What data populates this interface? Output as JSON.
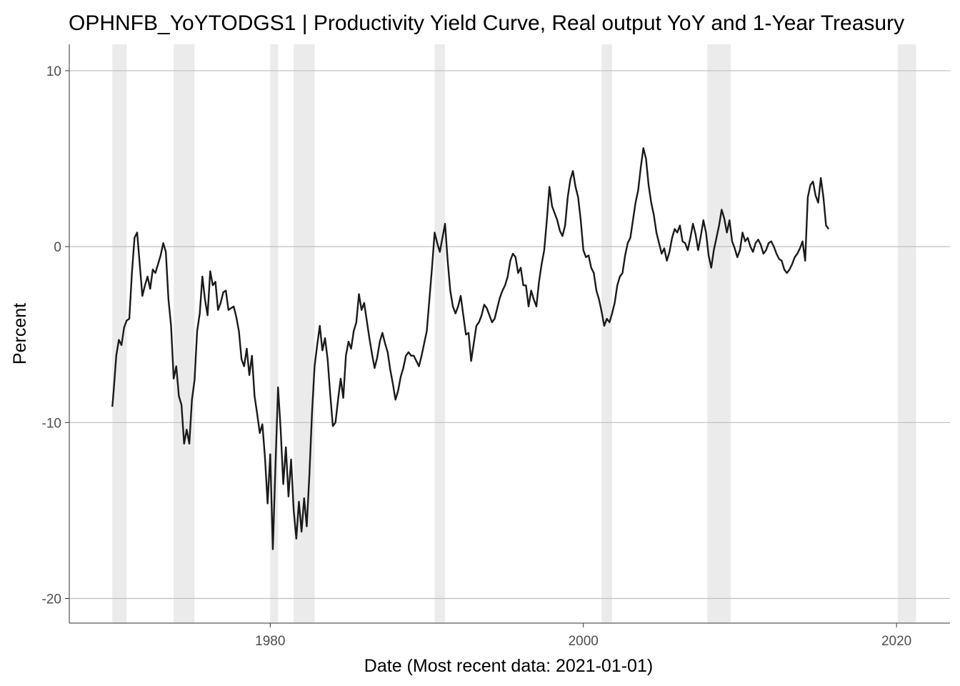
{
  "chart_data": {
    "type": "line",
    "title": "OPHNFB_YoYTODGS1 | Productivity Yield Curve, Real output YoY and 1-Year Treasury",
    "xlabel": "Date (Most recent data: 2021-01-01)",
    "ylabel": "Percent",
    "x_ticks": [
      "1980",
      "2000",
      "2020"
    ],
    "y_ticks": [
      10,
      0,
      -10,
      -20
    ],
    "xlim": [
      "1967-03-01",
      "2023-06-01"
    ],
    "ylim": [
      -21.4,
      11.5
    ],
    "grid": "major-y-and-x",
    "legend": "none",
    "colors": {
      "line": "#1a1a1a",
      "recession": "#ebebeb",
      "grid": "#bebebe",
      "axis": "#333333",
      "background": "#ffffff"
    },
    "recessions": [
      [
        "1969-12-01",
        "1970-11-01"
      ],
      [
        "1973-11-01",
        "1975-03-01"
      ],
      [
        "1980-01-01",
        "1980-07-01"
      ],
      [
        "1981-07-01",
        "1982-11-01"
      ],
      [
        "1990-07-01",
        "1991-03-01"
      ],
      [
        "2001-03-01",
        "2001-11-01"
      ],
      [
        "2007-12-01",
        "2009-06-01"
      ],
      [
        "2020-02-01",
        "2021-04-01"
      ]
    ],
    "series": [
      {
        "values": [
          [
            "1969-12-01",
            -9.1
          ],
          [
            "1970-01-01",
            -8.2
          ],
          [
            "1970-03-01",
            -6.2
          ],
          [
            "1970-05-01",
            -5.3
          ],
          [
            "1970-07-01",
            -5.6
          ],
          [
            "1970-09-01",
            -4.6
          ],
          [
            "1970-11-01",
            -4.2
          ],
          [
            "1971-01-01",
            -4.1
          ],
          [
            "1971-03-01",
            -1.5
          ],
          [
            "1971-05-01",
            0.5
          ],
          [
            "1971-07-01",
            0.8
          ],
          [
            "1971-09-01",
            -1.0
          ],
          [
            "1971-11-01",
            -2.8
          ],
          [
            "1972-01-01",
            -2.2
          ],
          [
            "1972-03-01",
            -1.7
          ],
          [
            "1972-05-01",
            -2.4
          ],
          [
            "1972-07-01",
            -1.3
          ],
          [
            "1972-09-01",
            -1.5
          ],
          [
            "1972-11-01",
            -1.0
          ],
          [
            "1973-01-01",
            -0.5
          ],
          [
            "1973-03-01",
            0.2
          ],
          [
            "1973-05-01",
            -0.3
          ],
          [
            "1973-07-01",
            -3.0
          ],
          [
            "1973-09-01",
            -4.5
          ],
          [
            "1973-11-01",
            -7.5
          ],
          [
            "1974-01-01",
            -6.8
          ],
          [
            "1974-03-01",
            -8.5
          ],
          [
            "1974-05-01",
            -9.0
          ],
          [
            "1974-07-01",
            -11.2
          ],
          [
            "1974-09-01",
            -10.4
          ],
          [
            "1974-11-01",
            -11.2
          ],
          [
            "1975-01-01",
            -8.7
          ],
          [
            "1975-03-01",
            -7.6
          ],
          [
            "1975-05-01",
            -4.8
          ],
          [
            "1975-07-01",
            -3.8
          ],
          [
            "1975-09-01",
            -1.7
          ],
          [
            "1975-11-01",
            -3.0
          ],
          [
            "1976-01-01",
            -3.9
          ],
          [
            "1976-03-01",
            -1.4
          ],
          [
            "1976-05-01",
            -2.2
          ],
          [
            "1976-07-01",
            -2.0
          ],
          [
            "1976-09-01",
            -3.6
          ],
          [
            "1976-11-01",
            -3.2
          ],
          [
            "1977-01-01",
            -2.6
          ],
          [
            "1977-03-01",
            -2.5
          ],
          [
            "1977-05-01",
            -3.6
          ],
          [
            "1977-07-01",
            -3.5
          ],
          [
            "1977-09-01",
            -3.4
          ],
          [
            "1977-11-01",
            -4.0
          ],
          [
            "1978-01-01",
            -4.8
          ],
          [
            "1978-03-01",
            -6.4
          ],
          [
            "1978-05-01",
            -6.8
          ],
          [
            "1978-07-01",
            -5.8
          ],
          [
            "1978-09-01",
            -7.3
          ],
          [
            "1978-11-01",
            -6.2
          ],
          [
            "1979-01-01",
            -8.5
          ],
          [
            "1979-03-01",
            -9.5
          ],
          [
            "1979-05-01",
            -10.6
          ],
          [
            "1979-07-01",
            -10.1
          ],
          [
            "1979-09-01",
            -12.0
          ],
          [
            "1979-11-01",
            -14.6
          ],
          [
            "1980-01-01",
            -11.8
          ],
          [
            "1980-03-01",
            -17.2
          ],
          [
            "1980-05-01",
            -12.5
          ],
          [
            "1980-07-01",
            -8.0
          ],
          [
            "1980-09-01",
            -10.4
          ],
          [
            "1980-11-01",
            -13.5
          ],
          [
            "1981-01-01",
            -11.4
          ],
          [
            "1981-03-01",
            -14.2
          ],
          [
            "1981-05-01",
            -12.1
          ],
          [
            "1981-07-01",
            -15.0
          ],
          [
            "1981-09-01",
            -16.6
          ],
          [
            "1981-11-01",
            -14.5
          ],
          [
            "1982-01-01",
            -16.2
          ],
          [
            "1982-03-01",
            -14.3
          ],
          [
            "1982-05-01",
            -15.9
          ],
          [
            "1982-07-01",
            -13.0
          ],
          [
            "1982-09-01",
            -9.5
          ],
          [
            "1982-11-01",
            -6.8
          ],
          [
            "1983-01-01",
            -5.6
          ],
          [
            "1983-03-01",
            -4.5
          ],
          [
            "1983-05-01",
            -5.9
          ],
          [
            "1983-07-01",
            -5.2
          ],
          [
            "1983-09-01",
            -6.4
          ],
          [
            "1983-11-01",
            -8.4
          ],
          [
            "1984-01-01",
            -10.2
          ],
          [
            "1984-03-01",
            -10.0
          ],
          [
            "1984-05-01",
            -8.7
          ],
          [
            "1984-07-01",
            -7.5
          ],
          [
            "1984-09-01",
            -8.6
          ],
          [
            "1984-11-01",
            -6.2
          ],
          [
            "1985-01-01",
            -5.4
          ],
          [
            "1985-03-01",
            -5.8
          ],
          [
            "1985-05-01",
            -4.8
          ],
          [
            "1985-07-01",
            -4.3
          ],
          [
            "1985-09-01",
            -2.7
          ],
          [
            "1985-11-01",
            -3.6
          ],
          [
            "1986-01-01",
            -3.2
          ],
          [
            "1986-03-01",
            -4.2
          ],
          [
            "1986-05-01",
            -5.2
          ],
          [
            "1986-07-01",
            -6.1
          ],
          [
            "1986-09-01",
            -6.9
          ],
          [
            "1986-11-01",
            -6.3
          ],
          [
            "1987-01-01",
            -5.4
          ],
          [
            "1987-03-01",
            -4.9
          ],
          [
            "1987-05-01",
            -5.5
          ],
          [
            "1987-07-01",
            -6.0
          ],
          [
            "1987-09-01",
            -7.0
          ],
          [
            "1987-11-01",
            -7.8
          ],
          [
            "1988-01-01",
            -8.7
          ],
          [
            "1988-03-01",
            -8.2
          ],
          [
            "1988-05-01",
            -7.4
          ],
          [
            "1988-07-01",
            -6.9
          ],
          [
            "1988-09-01",
            -6.2
          ],
          [
            "1988-11-01",
            -6.0
          ],
          [
            "1989-01-01",
            -6.2
          ],
          [
            "1989-03-01",
            -6.2
          ],
          [
            "1989-05-01",
            -6.5
          ],
          [
            "1989-07-01",
            -6.8
          ],
          [
            "1989-09-01",
            -6.2
          ],
          [
            "1989-11-01",
            -5.5
          ],
          [
            "1990-01-01",
            -4.8
          ],
          [
            "1990-03-01",
            -3.0
          ],
          [
            "1990-05-01",
            -1.2
          ],
          [
            "1990-07-01",
            0.8
          ],
          [
            "1990-09-01",
            0.2
          ],
          [
            "1990-11-01",
            -0.3
          ],
          [
            "1991-01-01",
            0.5
          ],
          [
            "1991-03-01",
            1.3
          ],
          [
            "1991-05-01",
            -0.8
          ],
          [
            "1991-07-01",
            -2.5
          ],
          [
            "1991-09-01",
            -3.4
          ],
          [
            "1991-11-01",
            -3.8
          ],
          [
            "1992-01-01",
            -3.4
          ],
          [
            "1992-03-01",
            -2.8
          ],
          [
            "1992-05-01",
            -3.9
          ],
          [
            "1992-07-01",
            -5.0
          ],
          [
            "1992-09-01",
            -4.9
          ],
          [
            "1992-11-01",
            -6.5
          ],
          [
            "1993-01-01",
            -5.5
          ],
          [
            "1993-03-01",
            -4.5
          ],
          [
            "1993-05-01",
            -4.3
          ],
          [
            "1993-07-01",
            -3.9
          ],
          [
            "1993-09-01",
            -3.3
          ],
          [
            "1993-11-01",
            -3.5
          ],
          [
            "1994-01-01",
            -3.9
          ],
          [
            "1994-03-01",
            -4.3
          ],
          [
            "1994-05-01",
            -4.1
          ],
          [
            "1994-07-01",
            -3.5
          ],
          [
            "1994-09-01",
            -2.9
          ],
          [
            "1994-11-01",
            -2.5
          ],
          [
            "1995-01-01",
            -2.2
          ],
          [
            "1995-03-01",
            -1.7
          ],
          [
            "1995-05-01",
            -0.8
          ],
          [
            "1995-07-01",
            -0.4
          ],
          [
            "1995-09-01",
            -0.6
          ],
          [
            "1995-11-01",
            -1.5
          ],
          [
            "1996-01-01",
            -1.2
          ],
          [
            "1996-03-01",
            -2.2
          ],
          [
            "1996-05-01",
            -2.2
          ],
          [
            "1996-07-01",
            -3.4
          ],
          [
            "1996-09-01",
            -2.5
          ],
          [
            "1996-11-01",
            -3.0
          ],
          [
            "1997-01-01",
            -3.4
          ],
          [
            "1997-03-01",
            -2.0
          ],
          [
            "1997-05-01",
            -1.0
          ],
          [
            "1997-07-01",
            -0.2
          ],
          [
            "1997-09-01",
            1.5
          ],
          [
            "1997-11-01",
            3.4
          ],
          [
            "1998-01-01",
            2.3
          ],
          [
            "1998-03-01",
            1.9
          ],
          [
            "1998-05-01",
            1.5
          ],
          [
            "1998-07-01",
            0.9
          ],
          [
            "1998-09-01",
            0.6
          ],
          [
            "1998-11-01",
            1.2
          ],
          [
            "1999-01-01",
            2.8
          ],
          [
            "1999-03-01",
            3.8
          ],
          [
            "1999-05-01",
            4.3
          ],
          [
            "1999-07-01",
            3.4
          ],
          [
            "1999-09-01",
            2.8
          ],
          [
            "1999-11-01",
            1.5
          ],
          [
            "2000-01-01",
            -0.2
          ],
          [
            "2000-03-01",
            -0.6
          ],
          [
            "2000-05-01",
            -0.5
          ],
          [
            "2000-07-01",
            -1.2
          ],
          [
            "2000-09-01",
            -1.5
          ],
          [
            "2000-11-01",
            -2.5
          ],
          [
            "2001-01-01",
            -3.0
          ],
          [
            "2001-03-01",
            -3.7
          ],
          [
            "2001-05-01",
            -4.5
          ],
          [
            "2001-07-01",
            -4.1
          ],
          [
            "2001-09-01",
            -4.3
          ],
          [
            "2001-11-01",
            -3.8
          ],
          [
            "2002-01-01",
            -3.2
          ],
          [
            "2002-03-01",
            -2.2
          ],
          [
            "2002-05-01",
            -1.7
          ],
          [
            "2002-07-01",
            -1.5
          ],
          [
            "2002-09-01",
            -0.5
          ],
          [
            "2002-11-01",
            0.2
          ],
          [
            "2003-01-01",
            0.5
          ],
          [
            "2003-03-01",
            1.5
          ],
          [
            "2003-05-01",
            2.5
          ],
          [
            "2003-07-01",
            3.2
          ],
          [
            "2003-09-01",
            4.5
          ],
          [
            "2003-11-01",
            5.6
          ],
          [
            "2004-01-01",
            5.0
          ],
          [
            "2004-03-01",
            3.5
          ],
          [
            "2004-05-01",
            2.5
          ],
          [
            "2004-07-01",
            1.8
          ],
          [
            "2004-09-01",
            0.8
          ],
          [
            "2004-11-01",
            0.2
          ],
          [
            "2005-01-01",
            -0.4
          ],
          [
            "2005-03-01",
            -0.1
          ],
          [
            "2005-05-01",
            -0.8
          ],
          [
            "2005-07-01",
            -0.3
          ],
          [
            "2005-09-01",
            0.5
          ],
          [
            "2005-11-01",
            1.0
          ],
          [
            "2006-01-01",
            0.8
          ],
          [
            "2006-03-01",
            1.2
          ],
          [
            "2006-05-01",
            0.3
          ],
          [
            "2006-07-01",
            0.2
          ],
          [
            "2006-09-01",
            -0.2
          ],
          [
            "2006-11-01",
            0.5
          ],
          [
            "2007-01-01",
            1.3
          ],
          [
            "2007-03-01",
            0.7
          ],
          [
            "2007-05-01",
            -0.2
          ],
          [
            "2007-07-01",
            0.6
          ],
          [
            "2007-09-01",
            1.5
          ],
          [
            "2007-11-01",
            0.8
          ],
          [
            "2008-01-01",
            -0.5
          ],
          [
            "2008-03-01",
            -1.2
          ],
          [
            "2008-05-01",
            -0.2
          ],
          [
            "2008-07-01",
            0.5
          ],
          [
            "2008-09-01",
            1.2
          ],
          [
            "2008-11-01",
            2.1
          ],
          [
            "2009-01-01",
            1.6
          ],
          [
            "2009-03-01",
            0.8
          ],
          [
            "2009-05-01",
            1.5
          ],
          [
            "2009-07-01",
            0.3
          ],
          [
            "2009-09-01",
            -0.1
          ],
          [
            "2009-11-01",
            -0.6
          ],
          [
            "2010-01-01",
            -0.2
          ],
          [
            "2010-03-01",
            0.8
          ],
          [
            "2010-05-01",
            0.3
          ],
          [
            "2010-07-01",
            0.5
          ],
          [
            "2010-09-01",
            0.0
          ],
          [
            "2010-11-01",
            -0.3
          ],
          [
            "2011-01-01",
            0.2
          ],
          [
            "2011-03-01",
            0.4
          ],
          [
            "2011-05-01",
            0.1
          ],
          [
            "2011-07-01",
            -0.4
          ],
          [
            "2011-09-01",
            -0.2
          ],
          [
            "2011-11-01",
            0.2
          ],
          [
            "2012-01-01",
            0.3
          ],
          [
            "2012-03-01",
            0.0
          ],
          [
            "2012-05-01",
            -0.4
          ],
          [
            "2012-07-01",
            -0.7
          ],
          [
            "2012-09-01",
            -0.8
          ],
          [
            "2012-11-01",
            -1.3
          ],
          [
            "2013-01-01",
            -1.5
          ],
          [
            "2013-03-01",
            -1.3
          ],
          [
            "2013-05-01",
            -1.0
          ],
          [
            "2013-07-01",
            -0.6
          ],
          [
            "2013-09-01",
            -0.4
          ],
          [
            "2013-11-01",
            -0.1
          ],
          [
            "2014-01-01",
            0.3
          ],
          [
            "2014-03-01",
            -0.8
          ],
          [
            "2014-05-01",
            2.8
          ],
          [
            "2014-07-01",
            3.5
          ],
          [
            "2014-09-01",
            3.7
          ],
          [
            "2014-11-01",
            2.9
          ],
          [
            "2015-01-01",
            2.5
          ],
          [
            "2015-03-01",
            3.9
          ],
          [
            "2015-05-01",
            2.8
          ],
          [
            "2015-07-01",
            1.2
          ],
          [
            "2015-09-01",
            1.0
          ]
        ]
      }
    ]
  }
}
